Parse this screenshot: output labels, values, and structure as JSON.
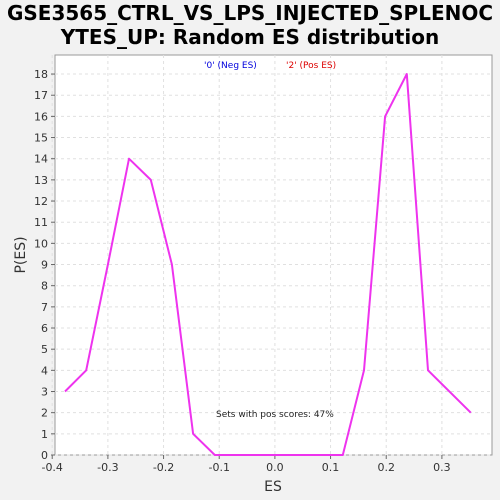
{
  "title_line1": "GSE3565_CTRL_VS_LPS_INJECTED_SPLENOC",
  "title_line2": "YTES_UP: Random ES distribution",
  "chart_data": {
    "type": "line",
    "xlabel": "ES",
    "ylabel": "P(ES)",
    "xlim": [
      -0.395,
      0.39
    ],
    "ylim": [
      0,
      18.9
    ],
    "x_ticks": [
      "-0.4",
      "-0.3",
      "-0.2",
      "-0.1",
      "0.0",
      "0.1",
      "0.2",
      "0.3"
    ],
    "y_ticks": [
      "0",
      "1",
      "2",
      "3",
      "4",
      "5",
      "6",
      "7",
      "8",
      "9",
      "10",
      "11",
      "12",
      "13",
      "14",
      "15",
      "16",
      "17",
      "18"
    ],
    "grid": true,
    "legend": [
      {
        "label": "'0' (Neg ES)",
        "color": "#0000dd"
      },
      {
        "label": "'2' (Pos ES)",
        "color": "#dd0000"
      }
    ],
    "annotation": "Sets with pos scores: 47%",
    "line_color": "#ee33ee",
    "series": [
      {
        "x": [
          -0.377,
          -0.339,
          -0.3,
          -0.262,
          -0.223,
          -0.185,
          -0.147,
          -0.108,
          -0.07,
          -0.032,
          0.007,
          0.045,
          0.083,
          0.122,
          0.16,
          0.198,
          0.237,
          0.275,
          0.352
        ],
        "y": [
          3,
          4,
          9,
          14,
          13,
          9,
          1,
          0,
          0,
          0,
          0,
          0,
          0,
          0,
          4,
          16,
          18,
          4,
          2
        ]
      }
    ]
  }
}
